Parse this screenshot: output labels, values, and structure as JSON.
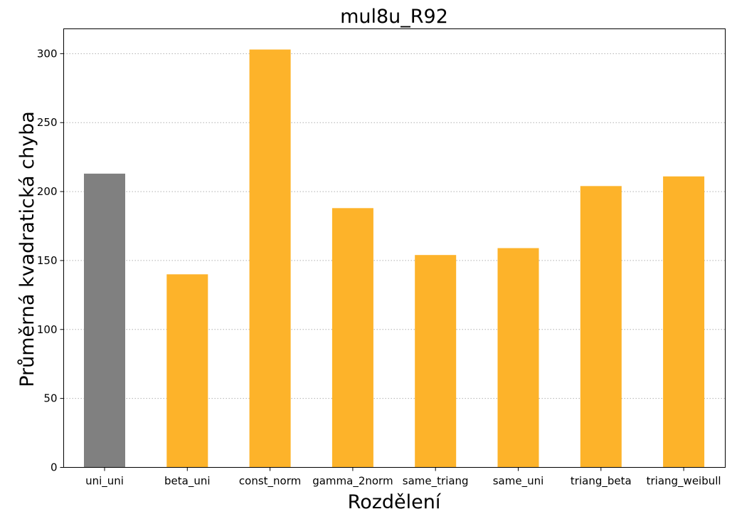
{
  "chart_data": {
    "type": "bar",
    "title": "mul8u_R92",
    "xlabel": "Rozdělení",
    "ylabel": "Průměrná kvadratická chyba",
    "categories": [
      "uni_uni",
      "beta_uni",
      "const_norm",
      "gamma_2norm",
      "same_triang",
      "same_uni",
      "triang_beta",
      "triang_weibull"
    ],
    "values": [
      213,
      140,
      303,
      188,
      154,
      159,
      204,
      211
    ],
    "bar_colors": [
      "#808080",
      "#fdb32a",
      "#fdb32a",
      "#fdb32a",
      "#fdb32a",
      "#fdb32a",
      "#fdb32a",
      "#fdb32a"
    ],
    "ylim": [
      0,
      318
    ],
    "yticks": [
      0,
      50,
      100,
      150,
      200,
      250,
      300
    ],
    "grid": "y-dotted",
    "legend": "none"
  }
}
